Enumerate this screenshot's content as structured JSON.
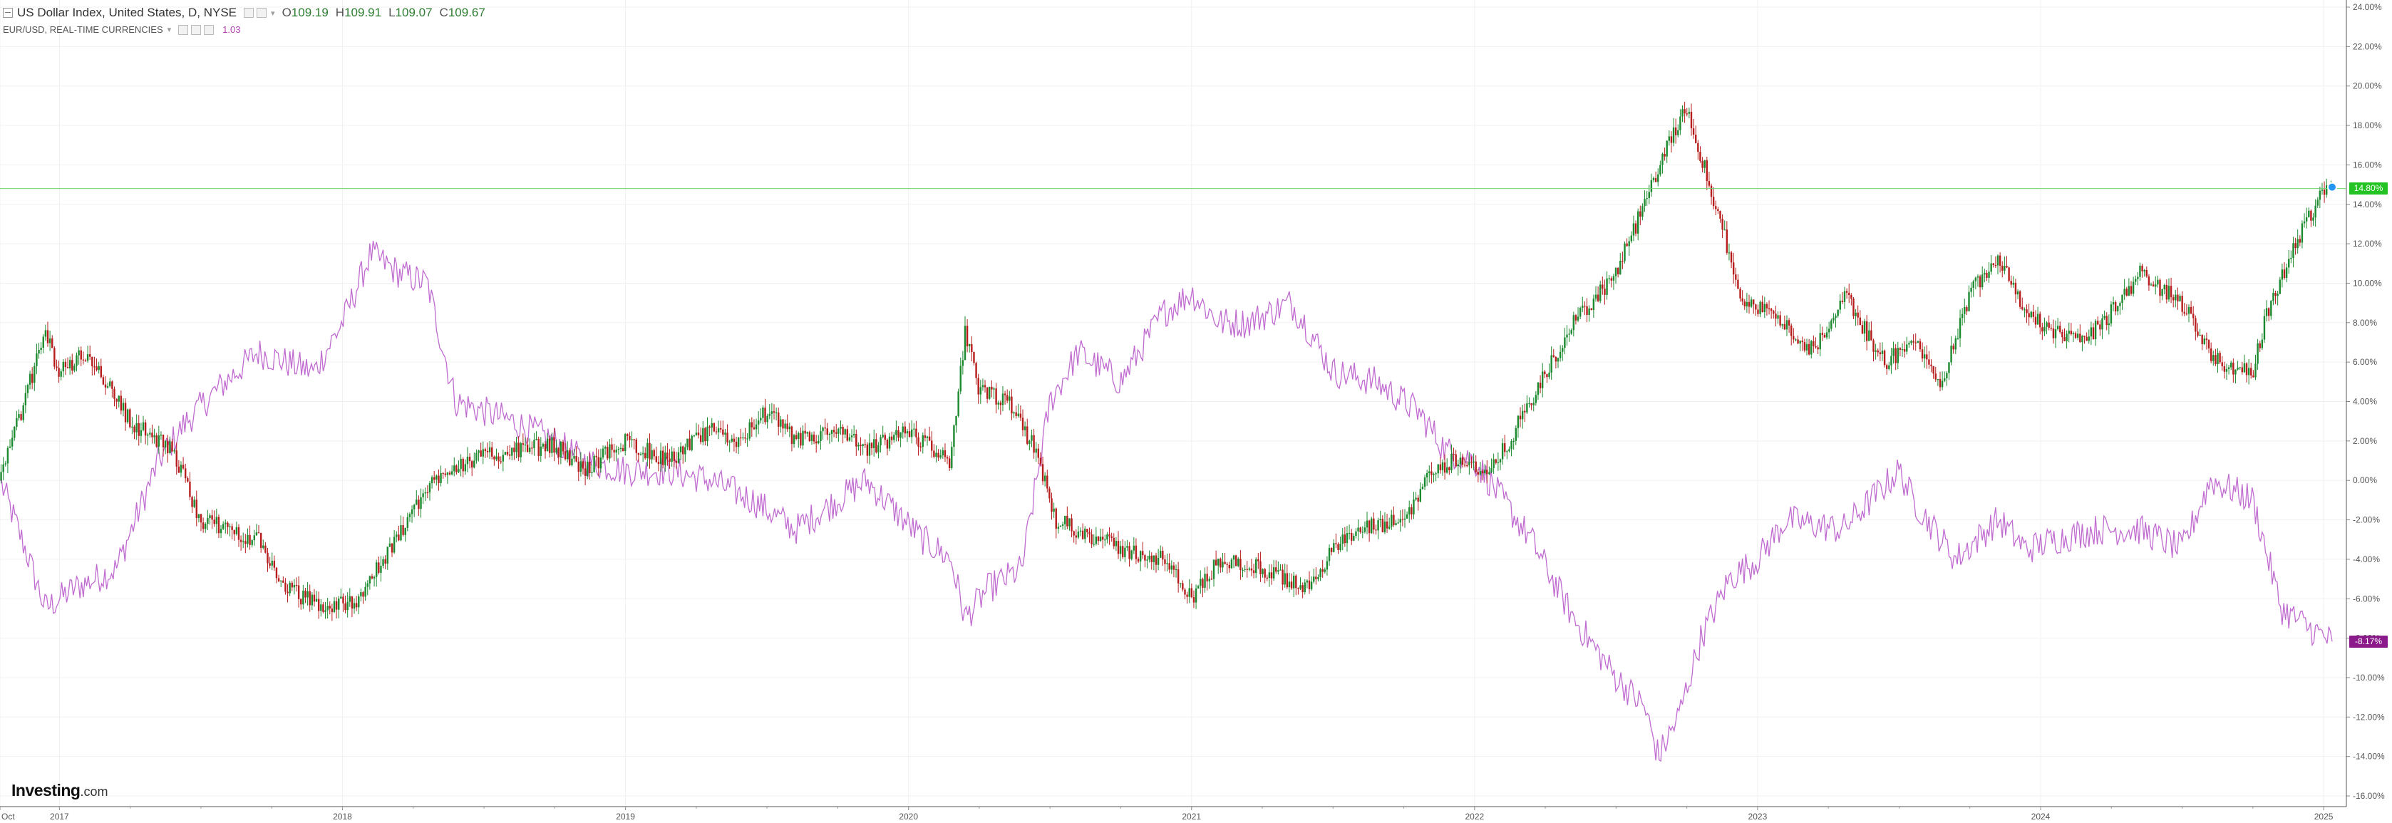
{
  "header": {
    "main_symbol": "US Dollar Index, United States, D, NYSE",
    "open_label": "O",
    "open": "109.19",
    "high_label": "H",
    "high": "109.91",
    "low_label": "L",
    "low": "109.07",
    "close_label": "C",
    "close": "109.67",
    "overlay_symbol": "EUR/USD, REAL-TIME CURRENCIES",
    "overlay_value": "1.03"
  },
  "logo": {
    "brand": "Investing",
    "suffix": ".com"
  },
  "price_badges": {
    "usd_last": "14.80%",
    "eur_last": "-8.17%"
  },
  "colors": {
    "up_candle": "#1b8a2e",
    "down_candle": "#b71c1c",
    "eur_line": "#c06bd0",
    "last_line": "#6fd36f",
    "badge_green": "#22c322",
    "badge_purple": "#8b1a8b"
  },
  "chart_data": {
    "type": "line",
    "x_axis_labels": [
      "Oct",
      "2017",
      "2018",
      "2019",
      "2020",
      "2021",
      "2022",
      "2023",
      "2024",
      "2025"
    ],
    "y_axis_labels": [
      "24.00%",
      "22.00%",
      "20.00%",
      "18.00%",
      "16.00%",
      "14.00%",
      "12.00%",
      "10.00%",
      "8.00%",
      "6.00%",
      "4.00%",
      "2.00%",
      "0.00%",
      "-2.00%",
      "-4.00%",
      "-6.00%",
      "-8.00%",
      "-10.00%",
      "-12.00%",
      "-14.00%",
      "-16.00%"
    ],
    "ylim": [
      -16,
      24
    ],
    "series": [
      {
        "name": "US Dollar Index, United States, D, NYSE",
        "style": "candlestick",
        "x": [
          2016.79,
          2016.95,
          2017.0,
          2017.1,
          2017.25,
          2017.4,
          2017.5,
          2017.6,
          2017.7,
          2017.8,
          2017.95,
          2018.05,
          2018.15,
          2018.25,
          2018.35,
          2018.45,
          2018.6,
          2018.75,
          2018.85,
          2019.0,
          2019.15,
          2019.3,
          2019.4,
          2019.5,
          2019.6,
          2019.75,
          2019.85,
          2020.0,
          2020.15,
          2020.2,
          2020.25,
          2020.35,
          2020.45,
          2020.52,
          2020.6,
          2020.75,
          2020.9,
          2021.0,
          2021.1,
          2021.25,
          2021.4,
          2021.5,
          2021.6,
          2021.75,
          2021.85,
          2021.95,
          2022.05,
          2022.2,
          2022.35,
          2022.5,
          2022.6,
          2022.7,
          2022.75,
          2022.85,
          2022.95,
          2023.05,
          2023.2,
          2023.3,
          2023.45,
          2023.55,
          2023.65,
          2023.75,
          2023.85,
          2023.95,
          2024.05,
          2024.15,
          2024.25,
          2024.35,
          2024.5,
          2024.6,
          2024.68,
          2024.75,
          2024.8,
          2024.9,
          2025.0
        ],
        "y": [
          0.0,
          7.5,
          5.5,
          6.5,
          3.0,
          1.5,
          -2.0,
          -2.5,
          -3.0,
          -5.5,
          -6.5,
          -6.0,
          -4.0,
          -1.5,
          0.5,
          1.0,
          1.5,
          1.8,
          0.5,
          2.0,
          1.0,
          2.5,
          2.0,
          3.5,
          2.0,
          2.5,
          1.5,
          2.5,
          1.0,
          7.5,
          4.5,
          4.0,
          1.5,
          -2.0,
          -2.5,
          -3.5,
          -4.0,
          -6.0,
          -4.0,
          -4.5,
          -5.5,
          -3.5,
          -2.5,
          -2.0,
          0.5,
          1.2,
          0.2,
          4.0,
          8.0,
          10.5,
          14.0,
          17.5,
          19.0,
          14.0,
          9.0,
          8.5,
          6.5,
          9.5,
          6.0,
          7.0,
          5.0,
          9.5,
          11.5,
          8.5,
          7.5,
          7.0,
          8.5,
          10.5,
          9.0,
          6.5,
          5.5,
          5.5,
          8.5,
          12.0,
          14.8
        ]
      },
      {
        "name": "EUR/USD, REAL-TIME CURRENCIES",
        "style": "line",
        "x": [
          2016.79,
          2016.88,
          2016.95,
          2017.05,
          2017.2,
          2017.35,
          2017.45,
          2017.55,
          2017.7,
          2017.8,
          2017.9,
          2018.0,
          2018.1,
          2018.2,
          2018.3,
          2018.4,
          2018.5,
          2018.6,
          2018.75,
          2018.85,
          2019.0,
          2019.15,
          2019.3,
          2019.45,
          2019.6,
          2019.75,
          2019.85,
          2019.95,
          2020.05,
          2020.15,
          2020.2,
          2020.28,
          2020.4,
          2020.5,
          2020.6,
          2020.75,
          2020.9,
          2021.0,
          2021.1,
          2021.2,
          2021.35,
          2021.4,
          2021.5,
          2021.65,
          2021.8,
          2021.9,
          2022.0,
          2022.1,
          2022.2,
          2022.35,
          2022.5,
          2022.6,
          2022.65,
          2022.72,
          2022.8,
          2022.9,
          2023.0,
          2023.1,
          2023.3,
          2023.5,
          2023.55,
          2023.7,
          2023.85,
          2023.95,
          2024.05,
          2024.2,
          2024.35,
          2024.5,
          2024.6,
          2024.68,
          2024.75,
          2024.85,
          2024.95,
          2025.03
        ],
        "y": [
          0.0,
          -3.5,
          -6.5,
          -5.5,
          -4.5,
          1.0,
          3.0,
          4.5,
          6.5,
          6.0,
          5.5,
          8.0,
          11.5,
          10.5,
          10.0,
          4.0,
          3.5,
          3.0,
          2.0,
          1.0,
          0.5,
          0.5,
          0.0,
          -1.0,
          -2.5,
          -1.0,
          0.0,
          -1.5,
          -3.0,
          -4.0,
          -7.0,
          -5.5,
          -4.5,
          4.0,
          6.5,
          5.0,
          8.5,
          9.5,
          8.0,
          8.0,
          9.0,
          8.0,
          5.5,
          5.0,
          3.5,
          1.5,
          1.0,
          -1.0,
          -3.0,
          -7.0,
          -10.0,
          -11.5,
          -14.0,
          -12.0,
          -8.0,
          -5.0,
          -4.0,
          -2.0,
          -2.5,
          0.5,
          -1.0,
          -4.0,
          -2.0,
          -3.5,
          -3.0,
          -2.5,
          -2.5,
          -3.5,
          0.0,
          -0.5,
          -1.0,
          -6.5,
          -7.5,
          -8.17
        ]
      }
    ],
    "last_values": {
      "usd": 14.8,
      "eur": -8.17
    },
    "grid": true
  }
}
